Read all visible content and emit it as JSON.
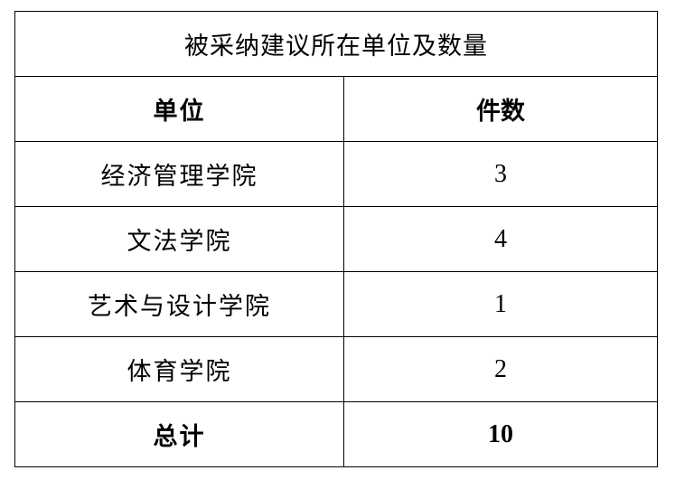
{
  "table": {
    "title": "被采纳建议所在单位及数量",
    "headers": [
      "单位",
      "件数"
    ],
    "rows": [
      {
        "unit": "经济管理学院",
        "count": "3"
      },
      {
        "unit": "文法学院",
        "count": "4"
      },
      {
        "unit": "艺术与设计学院",
        "count": "1"
      },
      {
        "unit": "体育学院",
        "count": "2"
      }
    ],
    "total": {
      "label": "总计",
      "count": "10"
    }
  }
}
